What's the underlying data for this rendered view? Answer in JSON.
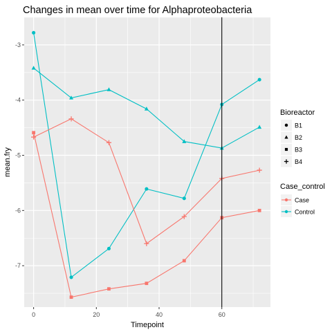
{
  "chart_data": {
    "type": "line",
    "title": "Changes in mean over time for  Alphaproteobacteria",
    "xlabel": "Timepoint",
    "ylabel": "mean.fry",
    "xlim": [
      -3,
      75.5
    ],
    "ylim": [
      -7.75,
      -2.5
    ],
    "x_ticks": [
      0,
      20,
      40,
      60
    ],
    "y_ticks": [
      -7,
      -6,
      -5,
      -4,
      -3
    ],
    "x_tick_labels": [
      "0",
      "20",
      "40",
      "60"
    ],
    "y_tick_labels": [
      "-7",
      "-6",
      "-5",
      "-4",
      "-3"
    ],
    "vline_x": 60,
    "grid": true,
    "background_color": "#EBEBEB",
    "legend_placement": "right",
    "legends": [
      {
        "title": "Bioreactor",
        "entries": [
          {
            "label": "B1",
            "shape": "circle"
          },
          {
            "label": "B2",
            "shape": "triangle"
          },
          {
            "label": "B3",
            "shape": "square"
          },
          {
            "label": "B4",
            "shape": "plus"
          }
        ]
      },
      {
        "title": "Case_control",
        "entries": [
          {
            "label": "Case",
            "color": "#F8766D"
          },
          {
            "label": "Control",
            "color": "#00BFC4"
          }
        ]
      }
    ],
    "series": [
      {
        "bioreactor": "B1",
        "group": "Control",
        "color": "#00BFC4",
        "shape": "circle",
        "x": [
          0,
          12,
          24,
          36,
          48,
          60,
          72
        ],
        "y": [
          -2.78,
          -7.21,
          -6.69,
          -5.61,
          -5.78,
          -4.08,
          -3.63
        ]
      },
      {
        "bioreactor": "B2",
        "group": "Control",
        "color": "#00BFC4",
        "shape": "triangle",
        "x": [
          0,
          12,
          24,
          36,
          48,
          60,
          72
        ],
        "y": [
          -3.42,
          -3.96,
          -3.81,
          -4.16,
          -4.75,
          -4.87,
          -4.49
        ]
      },
      {
        "bioreactor": "B3",
        "group": "Case",
        "color": "#F8766D",
        "shape": "square",
        "x": [
          0,
          12,
          24,
          36,
          48,
          60,
          72
        ],
        "y": [
          -4.59,
          -7.57,
          -7.42,
          -7.32,
          -6.91,
          -6.13,
          -6.0
        ]
      },
      {
        "bioreactor": "B4",
        "group": "Case",
        "color": "#F8766D",
        "shape": "plus",
        "x": [
          0,
          12,
          24,
          36,
          48,
          60,
          72
        ],
        "y": [
          -4.67,
          -4.34,
          -4.77,
          -6.6,
          -6.11,
          -5.42,
          -5.27
        ]
      }
    ]
  }
}
